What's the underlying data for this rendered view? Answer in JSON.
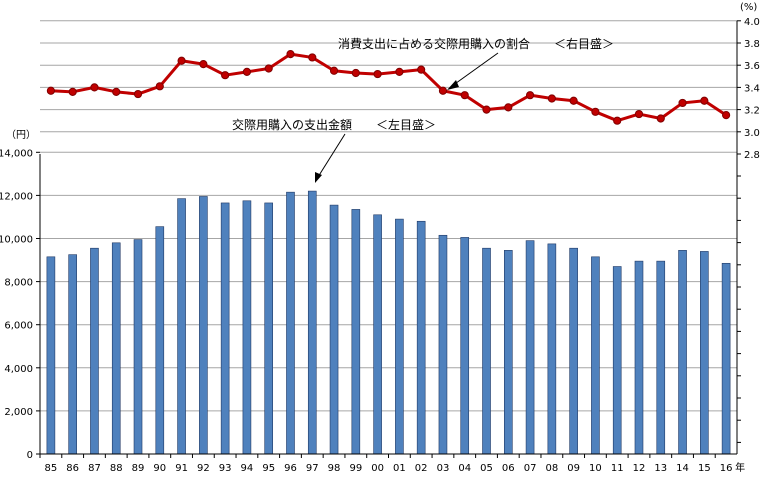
{
  "chart_data": {
    "type": "bar+line",
    "title": "",
    "categories": [
      "85",
      "86",
      "87",
      "88",
      "89",
      "90",
      "91",
      "92",
      "93",
      "94",
      "95",
      "96",
      "97",
      "98",
      "99",
      "00",
      "01",
      "02",
      "03",
      "04",
      "05",
      "06",
      "07",
      "08",
      "09",
      "10",
      "11",
      "12",
      "13",
      "14",
      "15",
      "16"
    ],
    "x_suffix": "年",
    "series": [
      {
        "type": "bar",
        "axis": "left",
        "color": "#4F81BD",
        "values": [
          9150,
          9250,
          9550,
          9800,
          9950,
          10550,
          11850,
          11950,
          11650,
          11750,
          11650,
          12150,
          12200,
          11550,
          11350,
          11100,
          10900,
          10800,
          10150,
          10050,
          9550,
          9450,
          9900,
          9750,
          9550,
          9150,
          8700,
          8950,
          8950,
          9450,
          9400,
          8850
        ]
      },
      {
        "type": "line",
        "axis": "right",
        "color": "#C00000",
        "values": [
          3.37,
          3.36,
          3.4,
          3.36,
          3.34,
          3.41,
          3.64,
          3.61,
          3.51,
          3.54,
          3.57,
          3.7,
          3.67,
          3.55,
          3.53,
          3.52,
          3.54,
          3.56,
          3.37,
          3.33,
          3.2,
          3.22,
          3.33,
          3.3,
          3.28,
          3.18,
          3.1,
          3.16,
          3.12,
          3.26,
          3.28,
          3.15
        ]
      }
    ],
    "left_axis": {
      "unit": "（円）",
      "ylim": [
        0,
        16000
      ],
      "ticks": [
        "0",
        "2,000",
        "4,000",
        "6,000",
        "8,000",
        "10,000",
        "12,000",
        "14,000"
      ]
    },
    "right_axis": {
      "unit": "(%)",
      "ylim": [
        2.8,
        4.0
      ],
      "ticks": [
        "2.8",
        "3.0",
        "3.2",
        "3.4",
        "3.6",
        "3.8",
        "4.0"
      ]
    },
    "annotations": {
      "line_label": "消費支出に占める交際用購入の割合　　＜右目盛＞",
      "bar_label": "交際用購入の支出金額　　＜左目盛＞"
    },
    "grid": true
  }
}
